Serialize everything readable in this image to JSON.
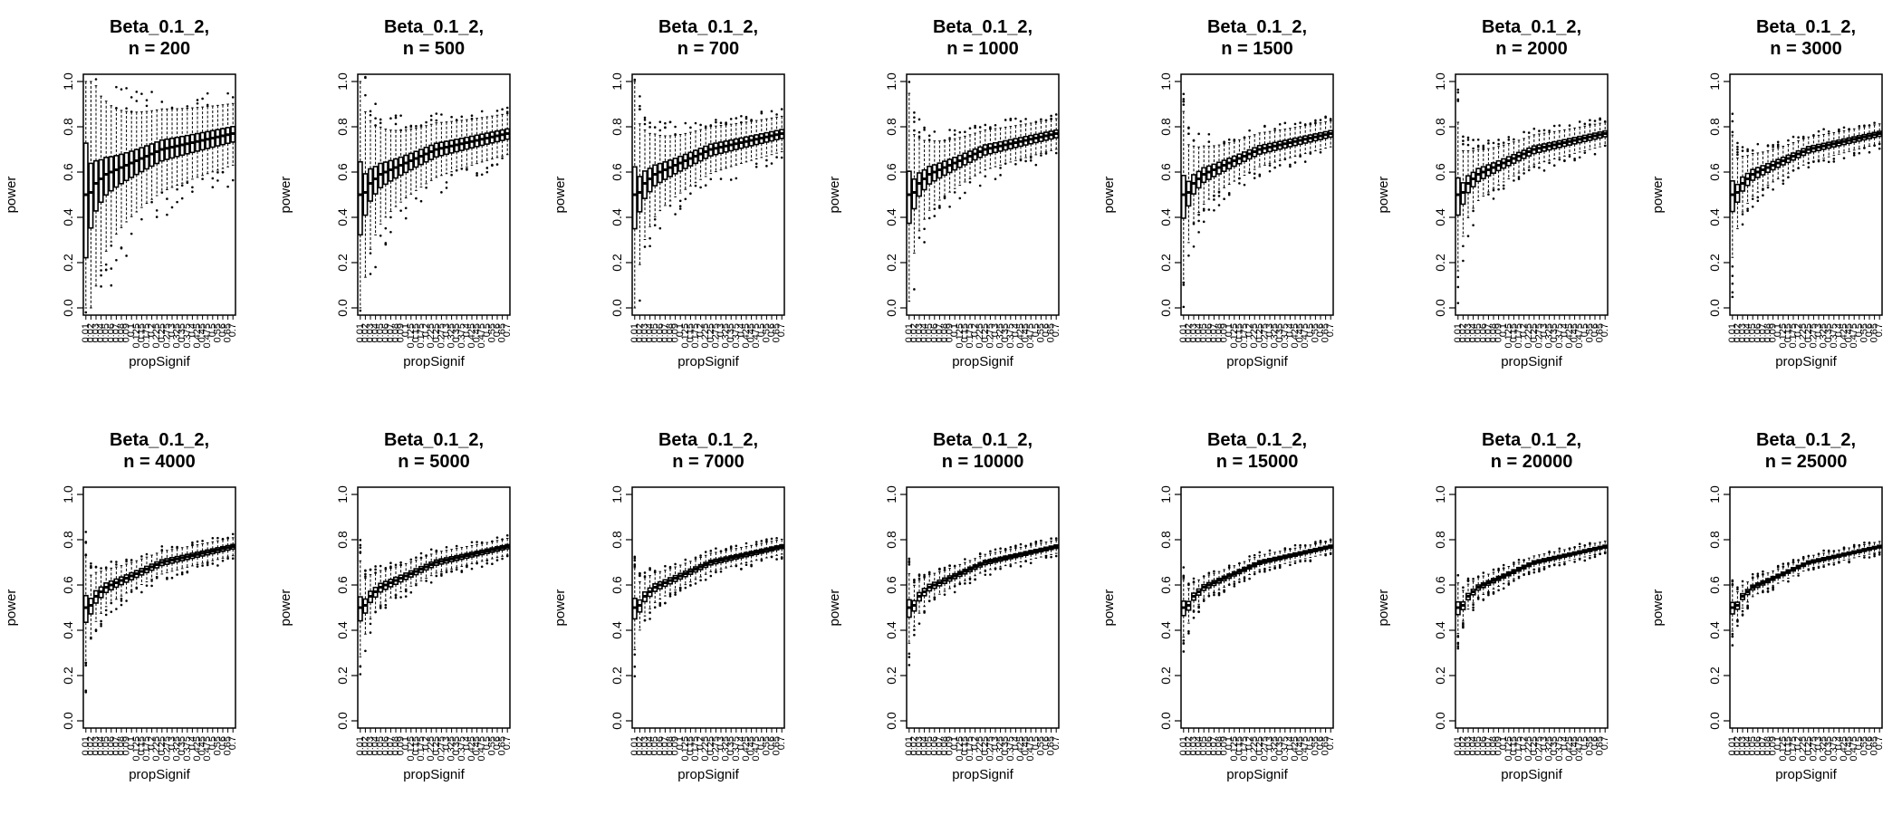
{
  "chart_data": {
    "type": "boxplot",
    "layout": "2 rows x 7 columns of panels",
    "categories": [
      "0.01",
      "0.02",
      "0.03",
      "0.04",
      "0.05",
      "0.06",
      "0.07",
      "0.08",
      "0.09",
      "0.1",
      "0.125",
      "0.15",
      "0.175",
      "0.2",
      "0.225",
      "0.25",
      "0.275",
      "0.3",
      "0.325",
      "0.35",
      "0.375",
      "0.4",
      "0.425",
      "0.45",
      "0.475",
      "0.5",
      "0.55",
      "0.6",
      "0.65",
      "0.7"
    ],
    "xlabel": "propSignif",
    "ylabel": "power",
    "ylim": [
      0,
      1
    ],
    "yticks": [
      "0.0",
      "0.2",
      "0.4",
      "0.6",
      "0.8",
      "1.0"
    ],
    "panels": [
      {
        "title": "Beta_0.1_2,",
        "n_label": "n = 200",
        "n": 200
      },
      {
        "title": "Beta_0.1_2,",
        "n_label": "n = 500",
        "n": 500
      },
      {
        "title": "Beta_0.1_2,",
        "n_label": "n = 700",
        "n": 700
      },
      {
        "title": "Beta_0.1_2,",
        "n_label": "n = 1000",
        "n": 1000
      },
      {
        "title": "Beta_0.1_2,",
        "n_label": "n = 1500",
        "n": 1500
      },
      {
        "title": "Beta_0.1_2,",
        "n_label": "n = 2000",
        "n": 2000
      },
      {
        "title": "Beta_0.1_2,",
        "n_label": "n = 3000",
        "n": 3000
      },
      {
        "title": "Beta_0.1_2,",
        "n_label": "n = 4000",
        "n": 4000
      },
      {
        "title": "Beta_0.1_2,",
        "n_label": "n = 5000",
        "n": 5000
      },
      {
        "title": "Beta_0.1_2,",
        "n_label": "n = 7000",
        "n": 7000
      },
      {
        "title": "Beta_0.1_2,",
        "n_label": "n = 10000",
        "n": 10000
      },
      {
        "title": "Beta_0.1_2,",
        "n_label": "n = 15000",
        "n": 15000
      },
      {
        "title": "Beta_0.1_2,",
        "n_label": "n = 20000",
        "n": 20000
      },
      {
        "title": "Beta_0.1_2,",
        "n_label": "n = 25000",
        "n": 25000
      }
    ],
    "median_power_by_propSignif": [
      0.5,
      0.51,
      0.55,
      0.57,
      0.59,
      0.6,
      0.61,
      0.62,
      0.63,
      0.64,
      0.65,
      0.66,
      0.67,
      0.68,
      0.69,
      0.7,
      0.705,
      0.71,
      0.715,
      0.72,
      0.725,
      0.73,
      0.735,
      0.74,
      0.745,
      0.75,
      0.755,
      0.76,
      0.765,
      0.77
    ],
    "grid": false,
    "legend": "none"
  }
}
